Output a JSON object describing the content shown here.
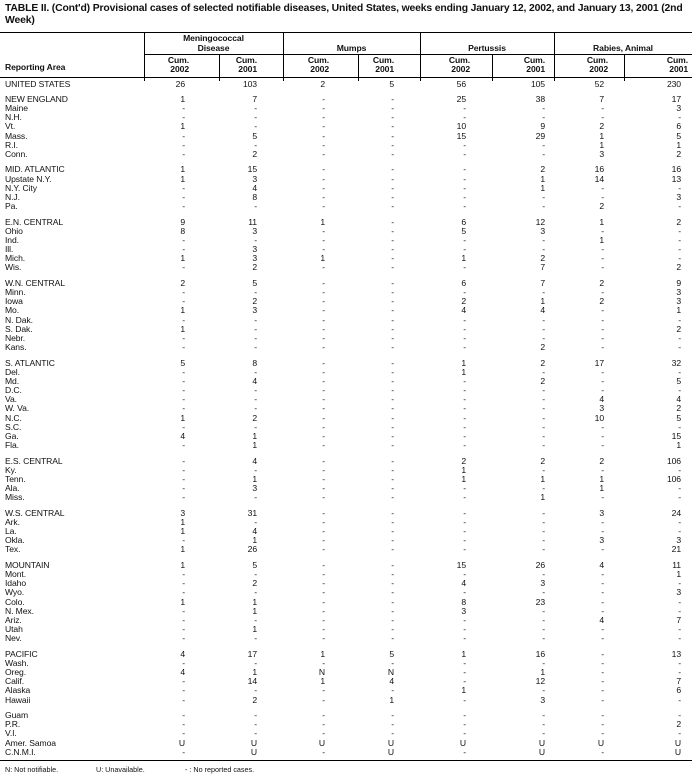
{
  "title": "TABLE II. (Cont'd) Provisional cases of selected notifiable diseases, United States, weeks ending January 12, 2002, and January 13, 2001 (2nd Week)",
  "header": {
    "area_label": "Reporting Area",
    "groups": [
      {
        "name_line1": "Meningococcal",
        "name_line2": "Disease"
      },
      {
        "name_line1": "",
        "name_line2": "Mumps"
      },
      {
        "name_line1": "",
        "name_line2": "Pertussis"
      },
      {
        "name_line1": "",
        "name_line2": "Rabies, Animal"
      }
    ],
    "sub": [
      {
        "l1": "Cum.",
        "l2": "2002"
      },
      {
        "l1": "Cum.",
        "l2": "2001"
      }
    ]
  },
  "regions": [
    [
      [
        "UNITED STATES",
        "26",
        "103",
        "2",
        "5",
        "56",
        "105",
        "52",
        "230"
      ]
    ],
    [
      [
        "NEW ENGLAND",
        "1",
        "7",
        "-",
        "-",
        "25",
        "38",
        "7",
        "17"
      ],
      [
        "Maine",
        "-",
        "-",
        "-",
        "-",
        "-",
        "-",
        "-",
        "3"
      ],
      [
        "N.H.",
        "-",
        "-",
        "-",
        "-",
        "-",
        "-",
        "-",
        "-"
      ],
      [
        "Vt.",
        "1",
        "-",
        "-",
        "-",
        "10",
        "9",
        "2",
        "6"
      ],
      [
        "Mass.",
        "-",
        "5",
        "-",
        "-",
        "15",
        "29",
        "1",
        "5"
      ],
      [
        "R.I.",
        "-",
        "-",
        "-",
        "-",
        "-",
        "-",
        "1",
        "1"
      ],
      [
        "Conn.",
        "-",
        "2",
        "-",
        "-",
        "-",
        "-",
        "3",
        "2"
      ]
    ],
    [
      [
        "MID. ATLANTIC",
        "1",
        "15",
        "-",
        "-",
        "-",
        "2",
        "16",
        "16"
      ],
      [
        "Upstate N.Y.",
        "1",
        "3",
        "-",
        "-",
        "-",
        "1",
        "14",
        "13"
      ],
      [
        "N.Y. City",
        "-",
        "4",
        "-",
        "-",
        "-",
        "1",
        "-",
        "-"
      ],
      [
        "N.J.",
        "-",
        "8",
        "-",
        "-",
        "-",
        "-",
        "-",
        "3"
      ],
      [
        "Pa.",
        "-",
        "-",
        "-",
        "-",
        "-",
        "-",
        "2",
        "-"
      ]
    ],
    [
      [
        "E.N. CENTRAL",
        "9",
        "11",
        "1",
        "-",
        "6",
        "12",
        "1",
        "2"
      ],
      [
        "Ohio",
        "8",
        "3",
        "-",
        "-",
        "5",
        "3",
        "-",
        "-"
      ],
      [
        "Ind.",
        "-",
        "-",
        "-",
        "-",
        "-",
        "-",
        "1",
        "-"
      ],
      [
        "Ill.",
        "-",
        "3",
        "-",
        "-",
        "-",
        "-",
        "-",
        "-"
      ],
      [
        "Mich.",
        "1",
        "3",
        "1",
        "-",
        "1",
        "2",
        "-",
        "-"
      ],
      [
        "Wis.",
        "-",
        "2",
        "-",
        "-",
        "-",
        "7",
        "-",
        "2"
      ]
    ],
    [
      [
        "W.N. CENTRAL",
        "2",
        "5",
        "-",
        "-",
        "6",
        "7",
        "2",
        "9"
      ],
      [
        "Minn.",
        "-",
        "-",
        "-",
        "-",
        "-",
        "-",
        "-",
        "3"
      ],
      [
        "Iowa",
        "-",
        "2",
        "-",
        "-",
        "2",
        "1",
        "2",
        "3"
      ],
      [
        "Mo.",
        "1",
        "3",
        "-",
        "-",
        "4",
        "4",
        "-",
        "1"
      ],
      [
        "N. Dak.",
        "-",
        "-",
        "-",
        "-",
        "-",
        "-",
        "-",
        "-"
      ],
      [
        "S. Dak.",
        "1",
        "-",
        "-",
        "-",
        "-",
        "-",
        "-",
        "2"
      ],
      [
        "Nebr.",
        "-",
        "-",
        "-",
        "-",
        "-",
        "-",
        "-",
        "-"
      ],
      [
        "Kans.",
        "-",
        "-",
        "-",
        "-",
        "-",
        "2",
        "-",
        "-"
      ]
    ],
    [
      [
        "S. ATLANTIC",
        "5",
        "8",
        "-",
        "-",
        "1",
        "2",
        "17",
        "32"
      ],
      [
        "Del.",
        "-",
        "-",
        "-",
        "-",
        "1",
        "-",
        "-",
        "-"
      ],
      [
        "Md.",
        "-",
        "4",
        "-",
        "-",
        "-",
        "2",
        "-",
        "5"
      ],
      [
        "D.C.",
        "-",
        "-",
        "-",
        "-",
        "-",
        "-",
        "-",
        "-"
      ],
      [
        "Va.",
        "-",
        "-",
        "-",
        "-",
        "-",
        "-",
        "4",
        "4"
      ],
      [
        "W. Va.",
        "-",
        "-",
        "-",
        "-",
        "-",
        "-",
        "3",
        "2"
      ],
      [
        "N.C.",
        "1",
        "2",
        "-",
        "-",
        "-",
        "-",
        "10",
        "5"
      ],
      [
        "S.C.",
        "-",
        "-",
        "-",
        "-",
        "-",
        "-",
        "-",
        "-"
      ],
      [
        "Ga.",
        "4",
        "1",
        "-",
        "-",
        "-",
        "-",
        "-",
        "15"
      ],
      [
        "Fla.",
        "-",
        "1",
        "-",
        "-",
        "-",
        "-",
        "-",
        "1"
      ]
    ],
    [
      [
        "E.S. CENTRAL",
        "-",
        "4",
        "-",
        "-",
        "2",
        "2",
        "2",
        "106"
      ],
      [
        "Ky.",
        "-",
        "-",
        "-",
        "-",
        "1",
        "-",
        "-",
        "-"
      ],
      [
        "Tenn.",
        "-",
        "1",
        "-",
        "-",
        "1",
        "1",
        "1",
        "106"
      ],
      [
        "Ala.",
        "-",
        "3",
        "-",
        "-",
        "-",
        "-",
        "1",
        "-"
      ],
      [
        "Miss.",
        "-",
        "-",
        "-",
        "-",
        "-",
        "1",
        "-",
        "-"
      ]
    ],
    [
      [
        "W.S. CENTRAL",
        "3",
        "31",
        "-",
        "-",
        "-",
        "-",
        "3",
        "24"
      ],
      [
        "Ark.",
        "1",
        "-",
        "-",
        "-",
        "-",
        "-",
        "-",
        "-"
      ],
      [
        "La.",
        "1",
        "4",
        "-",
        "-",
        "-",
        "-",
        "-",
        "-"
      ],
      [
        "Okla.",
        "-",
        "1",
        "-",
        "-",
        "-",
        "-",
        "3",
        "3"
      ],
      [
        "Tex.",
        "1",
        "26",
        "-",
        "-",
        "-",
        "-",
        "-",
        "21"
      ]
    ],
    [
      [
        "MOUNTAIN",
        "1",
        "5",
        "-",
        "-",
        "15",
        "26",
        "4",
        "11"
      ],
      [
        "Mont.",
        "-",
        "-",
        "-",
        "-",
        "-",
        "-",
        "-",
        "1"
      ],
      [
        "Idaho",
        "-",
        "2",
        "-",
        "-",
        "4",
        "3",
        "-",
        "-"
      ],
      [
        "Wyo.",
        "-",
        "-",
        "-",
        "-",
        "-",
        "-",
        "-",
        "3"
      ],
      [
        "Colo.",
        "1",
        "1",
        "-",
        "-",
        "8",
        "23",
        "-",
        "-"
      ],
      [
        "N. Mex.",
        "-",
        "1",
        "-",
        "-",
        "3",
        "-",
        "-",
        "-"
      ],
      [
        "Ariz.",
        "-",
        "-",
        "-",
        "-",
        "-",
        "-",
        "4",
        "7"
      ],
      [
        "Utah",
        "-",
        "1",
        "-",
        "-",
        "-",
        "-",
        "-",
        "-"
      ],
      [
        "Nev.",
        "-",
        "-",
        "-",
        "-",
        "-",
        "-",
        "-",
        "-"
      ]
    ],
    [
      [
        "PACIFIC",
        "4",
        "17",
        "1",
        "5",
        "1",
        "16",
        "-",
        "13"
      ],
      [
        "Wash.",
        "-",
        "-",
        "-",
        "-",
        "-",
        "-",
        "-",
        "-"
      ],
      [
        "Oreg.",
        "4",
        "1",
        "N",
        "N",
        "-",
        "1",
        "-",
        "-"
      ],
      [
        "Calif.",
        "-",
        "14",
        "1",
        "4",
        "-",
        "12",
        "-",
        "7"
      ],
      [
        "Alaska",
        "-",
        "-",
        "-",
        "-",
        "1",
        "-",
        "-",
        "6"
      ],
      [
        "Hawaii",
        "-",
        "2",
        "-",
        "1",
        "-",
        "3",
        "-",
        "-"
      ]
    ],
    [
      [
        "Guam",
        "-",
        "-",
        "-",
        "-",
        "-",
        "-",
        "-",
        "-"
      ],
      [
        "P.R.",
        "-",
        "-",
        "-",
        "-",
        "-",
        "-",
        "-",
        "2"
      ],
      [
        "V.I.",
        "-",
        "-",
        "-",
        "-",
        "-",
        "-",
        "-",
        "-"
      ],
      [
        "Amer. Samoa",
        "U",
        "U",
        "U",
        "U",
        "U",
        "U",
        "U",
        "U"
      ],
      [
        "C.N.M.I.",
        "-",
        "U",
        "-",
        "U",
        "-",
        "U",
        "-",
        "U"
      ]
    ]
  ],
  "footnotes": [
    "N: Not notifiable.",
    "U: Unavailable.",
    "- : No reported cases."
  ]
}
